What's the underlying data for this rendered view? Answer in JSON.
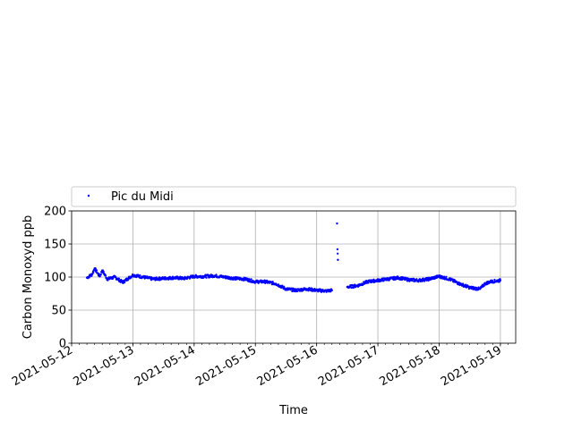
{
  "chart_data": {
    "type": "scatter",
    "title": "",
    "xlabel": "Time",
    "ylabel": "Carbon Monoxyd ppb",
    "x_tick_labels": [
      "2021-05-12",
      "2021-05-13",
      "2021-05-14",
      "2021-05-15",
      "2021-05-16",
      "2021-05-17",
      "2021-05-18",
      "2021-05-19"
    ],
    "x_range": [
      "2021-05-12T00:00",
      "2021-05-19T06:00"
    ],
    "y_ticks": [
      0,
      50,
      100,
      150,
      200
    ],
    "ylim": [
      0,
      200
    ],
    "grid": true,
    "legend_placement": "above plot, spanning full width",
    "series": [
      {
        "name": "Pic du Midi",
        "color": "#0000ff",
        "marker": "dot",
        "points": [
          [
            "2021-05-12T06:00",
            99
          ],
          [
            "2021-05-12T08:00",
            104
          ],
          [
            "2021-05-12T09:00",
            113
          ],
          [
            "2021-05-12T11:00",
            101
          ],
          [
            "2021-05-12T12:00",
            110
          ],
          [
            "2021-05-12T14:00",
            97
          ],
          [
            "2021-05-12T17:00",
            100
          ],
          [
            "2021-05-12T20:00",
            92
          ],
          [
            "2021-05-13T00:00",
            103
          ],
          [
            "2021-05-13T04:00",
            100
          ],
          [
            "2021-05-13T08:00",
            97
          ],
          [
            "2021-05-13T12:00",
            98
          ],
          [
            "2021-05-13T16:00",
            99
          ],
          [
            "2021-05-13T20:00",
            98
          ],
          [
            "2021-05-14T00:00",
            101
          ],
          [
            "2021-05-14T04:00",
            101
          ],
          [
            "2021-05-14T08:00",
            102
          ],
          [
            "2021-05-14T12:00",
            100
          ],
          [
            "2021-05-14T16:00",
            98
          ],
          [
            "2021-05-14T20:00",
            97
          ],
          [
            "2021-05-15T00:00",
            93
          ],
          [
            "2021-05-15T04:00",
            93
          ],
          [
            "2021-05-15T08:00",
            90
          ],
          [
            "2021-05-15T12:00",
            82
          ],
          [
            "2021-05-15T16:00",
            80
          ],
          [
            "2021-05-15T20:00",
            82
          ],
          [
            "2021-05-16T00:00",
            80
          ],
          [
            "2021-05-16T04:00",
            79
          ],
          [
            "2021-05-16T06:00",
            80
          ],
          [
            "2021-05-16T08:00",
            181
          ],
          [
            "2021-05-16T08:10",
            142
          ],
          [
            "2021-05-16T08:20",
            126
          ],
          [
            "2021-05-16T12:00",
            85
          ],
          [
            "2021-05-16T16:00",
            87
          ],
          [
            "2021-05-16T20:00",
            93
          ],
          [
            "2021-05-17T00:00",
            95
          ],
          [
            "2021-05-17T04:00",
            97
          ],
          [
            "2021-05-17T08:00",
            99
          ],
          [
            "2021-05-17T12:00",
            96
          ],
          [
            "2021-05-17T16:00",
            95
          ],
          [
            "2021-05-17T20:00",
            97
          ],
          [
            "2021-05-18T00:00",
            101
          ],
          [
            "2021-05-18T04:00",
            97
          ],
          [
            "2021-05-18T08:00",
            90
          ],
          [
            "2021-05-18T12:00",
            84
          ],
          [
            "2021-05-18T16:00",
            82
          ],
          [
            "2021-05-18T18:00",
            90
          ],
          [
            "2021-05-18T20:00",
            93
          ],
          [
            "2021-05-19T00:00",
            95
          ]
        ]
      }
    ]
  }
}
